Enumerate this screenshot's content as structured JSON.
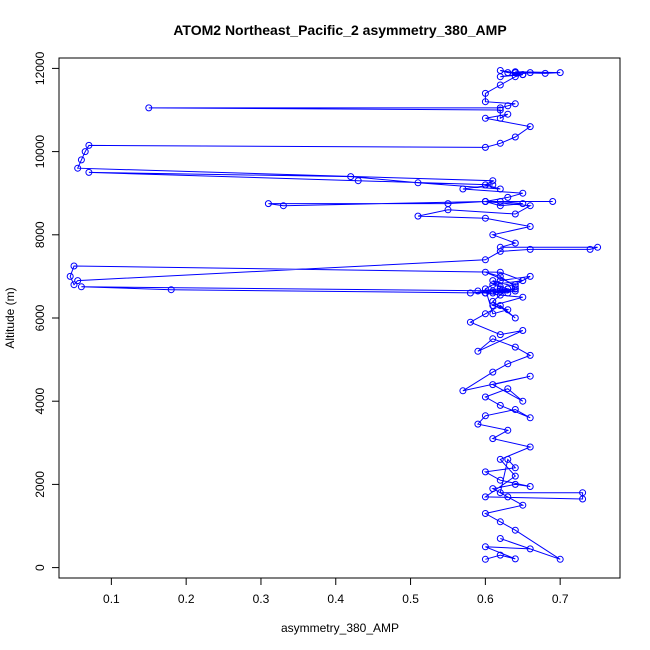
{
  "chart_data": {
    "type": "line",
    "title": "ATOM2 Northeast_Pacific_2 asymmetry_380_AMP",
    "xlabel": "asymmetry_380_AMP",
    "ylabel": "Altitude (m)",
    "xlim": [
      0.03,
      0.78
    ],
    "ylim": [
      -250,
      12250
    ],
    "x_ticks": [
      0.1,
      0.2,
      0.3,
      0.4,
      0.5,
      0.6,
      0.7
    ],
    "x_tick_labels": [
      "0.1",
      "0.2",
      "0.3",
      "0.4",
      "0.5",
      "0.6",
      "0.7"
    ],
    "y_ticks": [
      0,
      2000,
      4000,
      6000,
      8000,
      10000,
      12000
    ],
    "y_tick_labels": [
      "0",
      "2000",
      "4000",
      "6000",
      "8000",
      "10000",
      "12000"
    ],
    "marker": "open-circle",
    "grid": false,
    "legend": "none",
    "color": "#0000ff",
    "series": [
      {
        "x": [
          0.6,
          0.62,
          0.64,
          0.6,
          0.66,
          0.62,
          0.7,
          0.64,
          0.62,
          0.6,
          0.65,
          0.63,
          0.61,
          0.64,
          0.66,
          0.62,
          0.6,
          0.64,
          0.63,
          0.62,
          0.73,
          0.73,
          0.6,
          0.64,
          0.62,
          0.66,
          0.61,
          0.63,
          0.59,
          0.6,
          0.64,
          0.66,
          0.62,
          0.6,
          0.63,
          0.65,
          0.61,
          0.66,
          0.57,
          0.61,
          0.63,
          0.66,
          0.64,
          0.61,
          0.59,
          0.65,
          0.62,
          0.58,
          0.6,
          0.62,
          0.64,
          0.61,
          0.63,
          0.6,
          0.62,
          0.65,
          0.61,
          0.63,
          0.61,
          0.6,
          0.62,
          0.66,
          0.64,
          0.6,
          0.62,
          0.64,
          0.61,
          0.62,
          0.62,
          0.59,
          0.63,
          0.64,
          0.61,
          0.58,
          0.62,
          0.64,
          0.61,
          0.64,
          0.06,
          0.18,
          0.6,
          0.63,
          0.61,
          0.65,
          0.62,
          0.05,
          0.045,
          0.05,
          0.055,
          0.6,
          0.62,
          0.66,
          0.74,
          0.75,
          0.62,
          0.64,
          0.61,
          0.66,
          0.6,
          0.51,
          0.55,
          0.64,
          0.66,
          0.6,
          0.62,
          0.65,
          0.62,
          0.69,
          0.6,
          0.33,
          0.31,
          0.55,
          0.6,
          0.63,
          0.65,
          0.57,
          0.61,
          0.43,
          0.07,
          0.42,
          0.51,
          0.62,
          0.6,
          0.61,
          0.055,
          0.06,
          0.065,
          0.07,
          0.6,
          0.62,
          0.64,
          0.66,
          0.6,
          0.63,
          0.62,
          0.62,
          0.15,
          0.62,
          0.63,
          0.64,
          0.6,
          0.6,
          0.62,
          0.64,
          0.65,
          0.63,
          0.62,
          0.64,
          0.65,
          0.62,
          0.66,
          0.64,
          0.68,
          0.7,
          0.64
        ],
        "y": [
          200,
          300,
          210,
          500,
          450,
          700,
          200,
          900,
          1100,
          1300,
          1500,
          1700,
          1900,
          2000,
          1950,
          2100,
          2300,
          2400,
          2600,
          1800,
          1800,
          1650,
          1700,
          2200,
          2600,
          2900,
          3100,
          3300,
          3450,
          3650,
          3800,
          3600,
          3900,
          4100,
          4300,
          4000,
          4400,
          4600,
          4250,
          4700,
          4900,
          5100,
          5300,
          5500,
          5200,
          5700,
          5600,
          5900,
          6100,
          6300,
          6000,
          6400,
          6700,
          6600,
          6550,
          6500,
          6300,
          6200,
          6100,
          6700,
          6900,
          7000,
          6800,
          7100,
          7000,
          6750,
          6900,
          6750,
          6700,
          6650,
          6600,
          6700,
          6650,
          6600,
          6650,
          6700,
          6600,
          6650,
          6750,
          6680,
          6600,
          6700,
          6800,
          6900,
          7100,
          7250,
          7000,
          6800,
          6900,
          7400,
          7600,
          7650,
          7650,
          7700,
          7700,
          7800,
          8000,
          8200,
          8400,
          8450,
          8600,
          8500,
          8700,
          8800,
          8700,
          8750,
          8800,
          8800,
          8800,
          8700,
          8750,
          8750,
          8800,
          8900,
          9000,
          9100,
          9200,
          9300,
          9500,
          9400,
          9250,
          9100,
          9200,
          9300,
          9600,
          9800,
          10000,
          10150,
          10100,
          10200,
          10350,
          10600,
          10800,
          10900,
          10800,
          11000,
          11050,
          11050,
          11100,
          11150,
          11200,
          11400,
          11600,
          11800,
          11850,
          11900,
          11950,
          11900,
          11850,
          11800,
          11900,
          11900,
          11880,
          11900,
          11920
        ]
      }
    ]
  }
}
